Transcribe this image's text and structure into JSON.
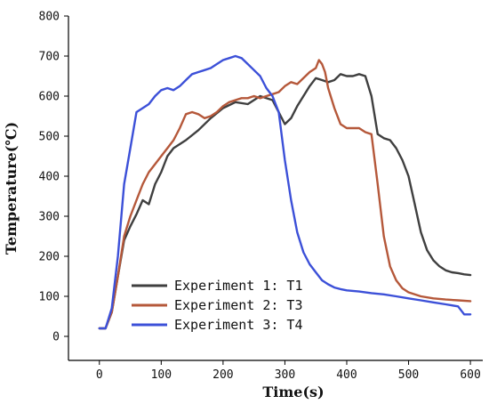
{
  "chart_data": {
    "type": "line",
    "title": "",
    "xlabel": "Time(s)",
    "ylabel": "Temperature(℃)",
    "xlim": [
      -50,
      620
    ],
    "ylim": [
      -60,
      800
    ],
    "xticks": [
      0,
      100,
      200,
      300,
      400,
      500,
      600
    ],
    "yticks": [
      0,
      100,
      200,
      300,
      400,
      500,
      600,
      700,
      800
    ],
    "legend_position": "bottom-left",
    "grid": false,
    "series": [
      {
        "name": "Experiment 1: T1",
        "color": "#3f3f3f",
        "x": [
          0,
          10,
          20,
          30,
          40,
          50,
          60,
          70,
          80,
          90,
          100,
          110,
          120,
          140,
          160,
          180,
          200,
          220,
          240,
          260,
          280,
          300,
          310,
          320,
          330,
          340,
          350,
          360,
          370,
          380,
          390,
          400,
          410,
          420,
          430,
          440,
          450,
          460,
          470,
          480,
          490,
          500,
          510,
          520,
          530,
          540,
          550,
          560,
          570,
          580,
          590,
          600
        ],
        "y": [
          20,
          20,
          60,
          150,
          240,
          275,
          305,
          340,
          330,
          380,
          410,
          450,
          470,
          490,
          515,
          545,
          570,
          585,
          580,
          600,
          590,
          530,
          545,
          575,
          600,
          625,
          645,
          640,
          635,
          640,
          655,
          650,
          650,
          655,
          650,
          600,
          505,
          495,
          490,
          470,
          440,
          400,
          330,
          260,
          215,
          190,
          175,
          165,
          160,
          158,
          155,
          153
        ]
      },
      {
        "name": "Experiment 2: T3",
        "color": "#b5583a",
        "x": [
          0,
          10,
          20,
          30,
          40,
          50,
          60,
          70,
          80,
          90,
          100,
          110,
          120,
          130,
          140,
          150,
          160,
          170,
          180,
          190,
          200,
          210,
          220,
          230,
          240,
          250,
          260,
          270,
          280,
          290,
          300,
          310,
          320,
          330,
          340,
          350,
          355,
          360,
          365,
          370,
          380,
          390,
          400,
          410,
          420,
          430,
          440,
          450,
          460,
          470,
          480,
          490,
          500,
          520,
          540,
          560,
          580,
          600
        ],
        "y": [
          20,
          20,
          60,
          150,
          250,
          300,
          340,
          380,
          410,
          430,
          450,
          470,
          490,
          520,
          555,
          560,
          555,
          545,
          550,
          560,
          575,
          585,
          590,
          595,
          595,
          600,
          595,
          600,
          605,
          610,
          625,
          635,
          630,
          645,
          660,
          670,
          690,
          680,
          660,
          620,
          570,
          530,
          520,
          520,
          520,
          510,
          505,
          380,
          250,
          175,
          140,
          120,
          110,
          100,
          95,
          92,
          90,
          88
        ]
      },
      {
        "name": "Experiment 3: T4",
        "color": "#3c50d8",
        "x": [
          0,
          10,
          20,
          30,
          40,
          50,
          60,
          70,
          80,
          90,
          100,
          110,
          120,
          130,
          140,
          150,
          160,
          170,
          180,
          190,
          200,
          210,
          220,
          230,
          240,
          250,
          260,
          270,
          280,
          290,
          300,
          310,
          320,
          330,
          340,
          350,
          360,
          370,
          380,
          390,
          400,
          420,
          440,
          460,
          480,
          500,
          520,
          540,
          560,
          580,
          590,
          600
        ],
        "y": [
          20,
          20,
          70,
          200,
          380,
          470,
          560,
          570,
          580,
          600,
          615,
          620,
          615,
          625,
          640,
          655,
          660,
          665,
          670,
          680,
          690,
          695,
          700,
          695,
          680,
          665,
          650,
          620,
          600,
          560,
          440,
          340,
          260,
          210,
          180,
          160,
          140,
          130,
          122,
          118,
          115,
          112,
          108,
          105,
          100,
          95,
          90,
          85,
          80,
          75,
          55,
          55
        ]
      }
    ]
  }
}
